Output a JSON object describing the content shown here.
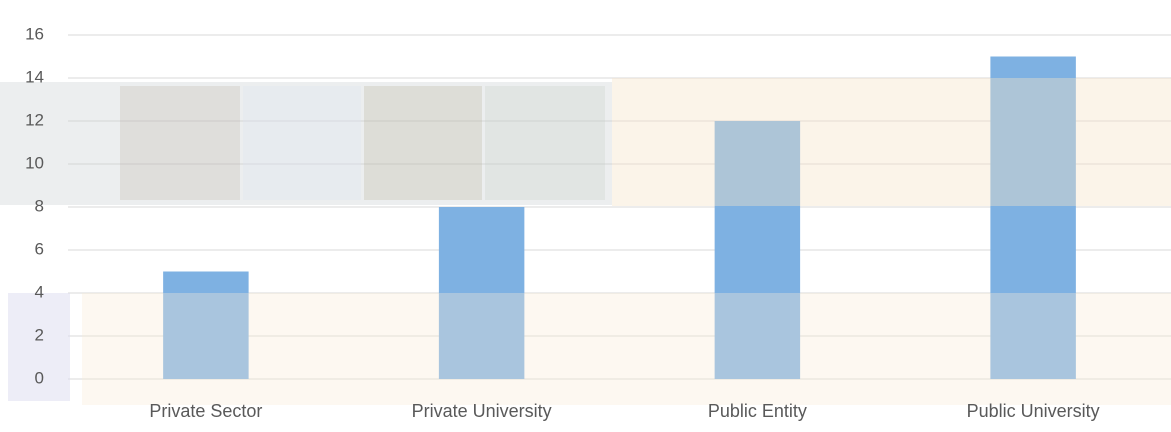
{
  "chart_data": {
    "type": "bar",
    "categories": [
      "Private Sector",
      "Private University",
      "Public Entity",
      "Public University"
    ],
    "values": [
      5,
      8,
      12,
      15
    ],
    "color": "#7eb1e2",
    "ylim": [
      0,
      16
    ],
    "yticks": [
      0,
      2,
      4,
      6,
      8,
      10,
      12,
      14,
      16
    ],
    "grid": true
  }
}
